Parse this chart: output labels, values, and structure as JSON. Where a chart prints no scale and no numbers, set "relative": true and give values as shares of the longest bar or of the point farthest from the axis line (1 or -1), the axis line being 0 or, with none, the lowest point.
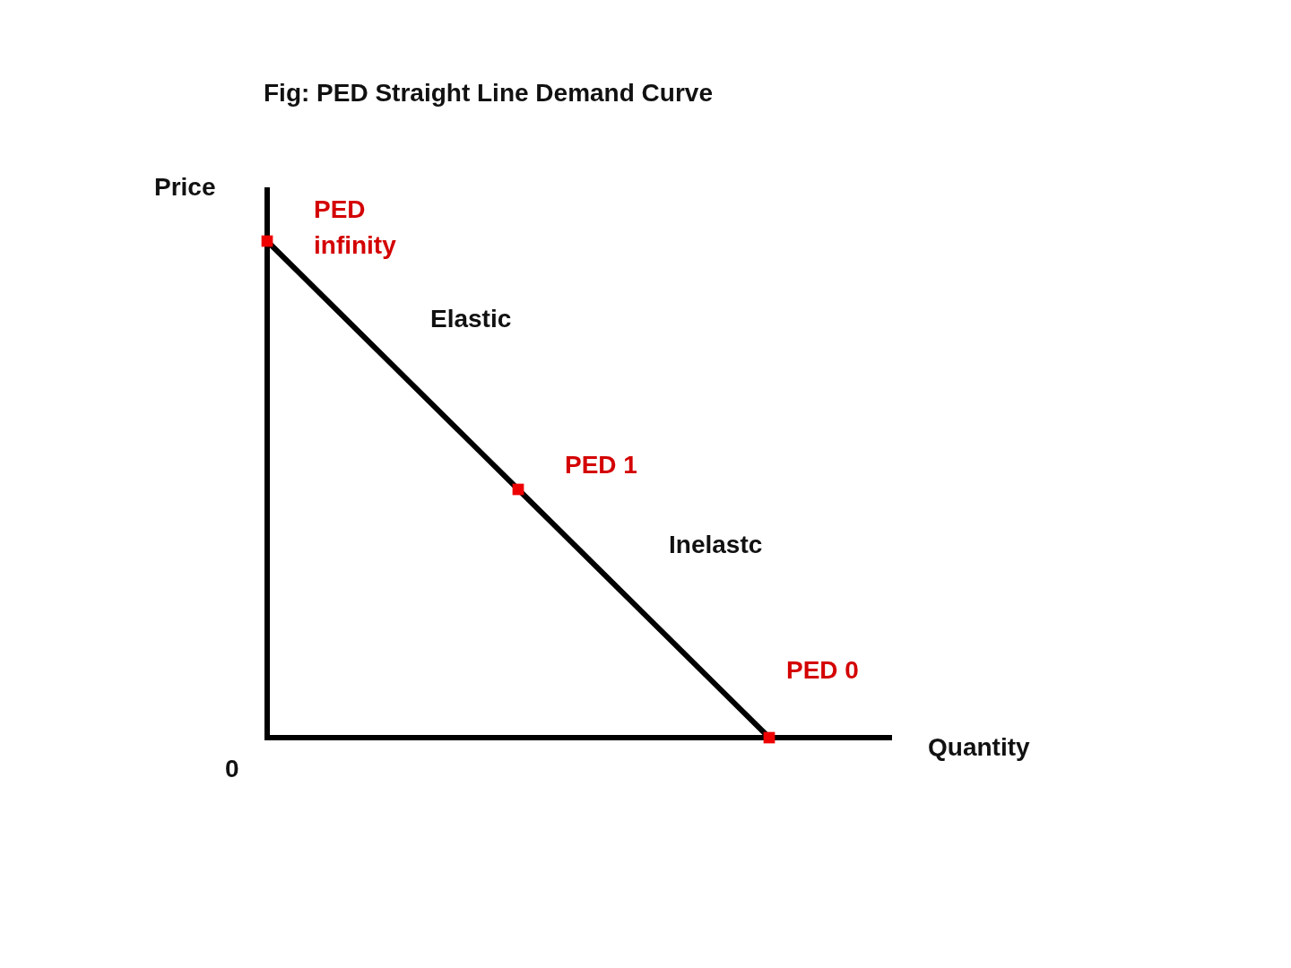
{
  "chart_data": {
    "type": "line",
    "title": "Fig: PED Straight Line Demand Curve",
    "xlabel": "Quantity",
    "ylabel": "Price",
    "relative": true,
    "categories": [
      null,
      null,
      null
    ],
    "marker": "square",
    "series": [
      {
        "color": "#000000",
        "colors": [
          "#ee0000",
          "#ee0000",
          "#ee0000"
        ],
        "values": [
          1,
          0.5,
          0
        ]
      }
    ],
    "annotations": [
      "PED infinity",
      "Elastic",
      "PED 1",
      "Inelastc",
      "PED 0",
      "0"
    ]
  }
}
